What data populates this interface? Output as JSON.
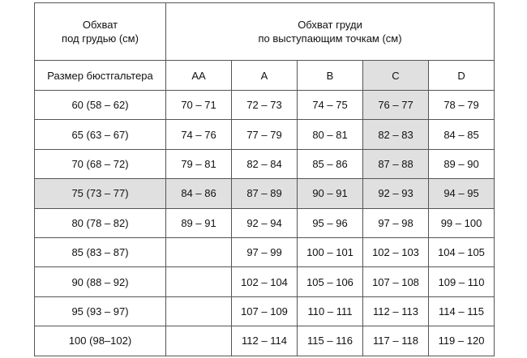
{
  "header": {
    "underbust_line1": "Обхват",
    "underbust_line2": "под грудью (см)",
    "bust_line1": "Обхват груди",
    "bust_line2": "по выступающим точкам (см)",
    "size_label": "Размер бюстгальтера",
    "cups": [
      "AA",
      "A",
      "B",
      "C",
      "D"
    ]
  },
  "highlight_color": "#e0e0e0",
  "highlighted_cup": "C",
  "highlighted_row": "75 (73 – 77)",
  "rows": [
    {
      "size": "60 (58 – 62)",
      "cells": [
        "70 – 71",
        "72 – 73",
        "74 – 75",
        "76 – 77",
        "78 – 79"
      ]
    },
    {
      "size": "65 (63 – 67)",
      "cells": [
        "74 – 76",
        "77 – 79",
        "80 – 81",
        "82 – 83",
        "84 – 85"
      ]
    },
    {
      "size": "70 (68 – 72)",
      "cells": [
        "79 – 81",
        "82 – 84",
        "85 – 86",
        "87 – 88",
        "89 – 90"
      ]
    },
    {
      "size": "75 (73 – 77)",
      "cells": [
        "84 – 86",
        "87 – 89",
        "90 – 91",
        "92 – 93",
        "94 – 95"
      ]
    },
    {
      "size": "80 (78 – 82)",
      "cells": [
        "89 – 91",
        "92 – 94",
        "95 – 96",
        "97 – 98",
        "99 – 100"
      ]
    },
    {
      "size": "85 (83 – 87)",
      "cells": [
        "",
        "97 – 99",
        "100 – 101",
        "102 – 103",
        "104 – 105"
      ]
    },
    {
      "size": "90 (88 – 92)",
      "cells": [
        "",
        "102 – 104",
        "105 – 106",
        "107 – 108",
        "109 – 110"
      ]
    },
    {
      "size": "95 (93 – 97)",
      "cells": [
        "",
        "107 – 109",
        "110 – 111",
        "112 – 113",
        "114 – 115"
      ]
    },
    {
      "size": "100 (98–102)",
      "cells": [
        "",
        "112 – 114",
        "115 – 116",
        "117 – 118",
        "119 – 120"
      ]
    }
  ]
}
